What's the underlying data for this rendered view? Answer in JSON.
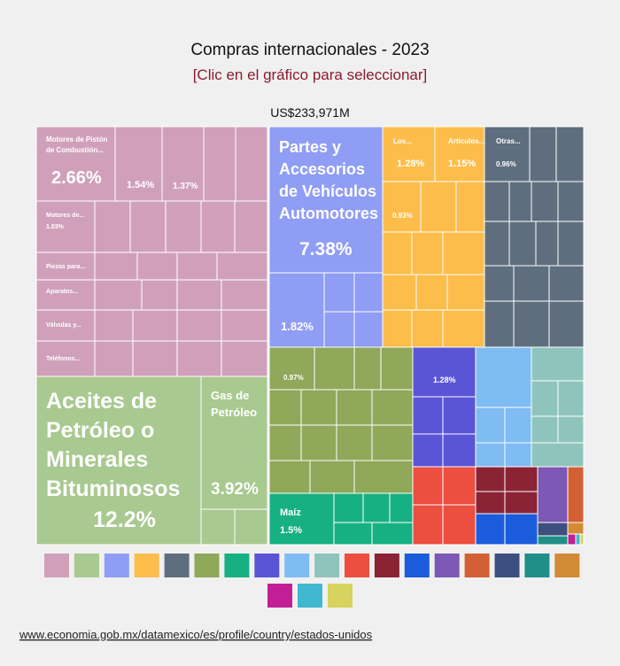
{
  "chart_data": {
    "type": "treemap",
    "title": "Compras internacionales - 2023",
    "subtitle": "[Clic en el gráfico para seleccionar]",
    "total": "US$233,971M",
    "source": "www.economia.gob.mx/datamexico/es/profile/country/estados-unidos",
    "series": [
      {
        "color": "#d0a0bb",
        "labels": [
          "Motores de Pistón\nde Combustión...",
          null,
          null,
          "Motores de...",
          "Piezas para...",
          "Aparatos...",
          "Válvulas y...",
          "Teléfonos..."
        ],
        "values": [
          2.66,
          1.54,
          1.37,
          1.03,
          null,
          null,
          null,
          null
        ],
        "value_labels": [
          "2.66%",
          "1.54%",
          "1.37%",
          "1.03%",
          null,
          null,
          null,
          null
        ]
      },
      {
        "color": "#a8c98f",
        "labels": [
          "Aceites de\nPetróleo o\nMinerales\nBituminosos",
          "Gas de\nPetróleo"
        ],
        "values": [
          12.2,
          3.92
        ],
        "value_labels": [
          "12.2%",
          "3.92%"
        ]
      },
      {
        "color": "#8f9df5",
        "labels": [
          "Partes y\nAccesorios\nde Vehículos\nAutomotores",
          null
        ],
        "values": [
          7.38,
          1.82
        ],
        "value_labels": [
          "7.38%",
          "1.82%"
        ]
      },
      {
        "color": "#fdbd4a",
        "labels": [
          "Los...",
          "Artículos...",
          null
        ],
        "values": [
          1.28,
          1.15,
          0.93
        ],
        "value_labels": [
          "1.28%",
          "1.15%",
          "0.93%"
        ]
      },
      {
        "color": "#5f6e7e",
        "labels": [
          "Otras..."
        ],
        "values": [
          0.96
        ],
        "value_labels": [
          "0.96%"
        ]
      },
      {
        "color": "#8fa85a",
        "labels": [
          null
        ],
        "values": [
          0.97
        ],
        "value_labels": [
          "0.97%"
        ]
      },
      {
        "color": "#17b082",
        "labels": [
          "Maíz"
        ],
        "values": [
          1.5
        ],
        "value_labels": [
          "1.5%"
        ]
      },
      {
        "color": "#5a55d6",
        "labels": [
          null
        ],
        "values": [
          1.28
        ],
        "value_labels": [
          "1.28%"
        ]
      },
      {
        "color": "#7fbcf4",
        "labels": [],
        "values": [],
        "value_labels": []
      },
      {
        "color": "#8fc4bd",
        "labels": [],
        "values": [],
        "value_labels": []
      },
      {
        "color": "#ec4e40",
        "labels": [],
        "values": [],
        "value_labels": []
      },
      {
        "color": "#8b2335",
        "labels": [],
        "values": [],
        "value_labels": []
      },
      {
        "color": "#1a5cdb",
        "labels": [],
        "values": [],
        "value_labels": []
      },
      {
        "color": "#7d58b5",
        "labels": [],
        "values": [],
        "value_labels": []
      },
      {
        "color": "#d35f35",
        "labels": [],
        "values": [],
        "value_labels": []
      },
      {
        "color": "#3c4f7f",
        "labels": [],
        "values": [],
        "value_labels": []
      },
      {
        "color": "#1f8f88",
        "labels": [],
        "values": [],
        "value_labels": []
      },
      {
        "color": "#d38a35",
        "labels": [],
        "values": [],
        "value_labels": []
      },
      {
        "color": "#c21f96",
        "labels": [],
        "values": [],
        "value_labels": []
      },
      {
        "color": "#41b7d0",
        "labels": [],
        "values": [],
        "value_labels": []
      },
      {
        "color": "#d7d35e",
        "labels": [],
        "values": [],
        "value_labels": []
      }
    ]
  }
}
